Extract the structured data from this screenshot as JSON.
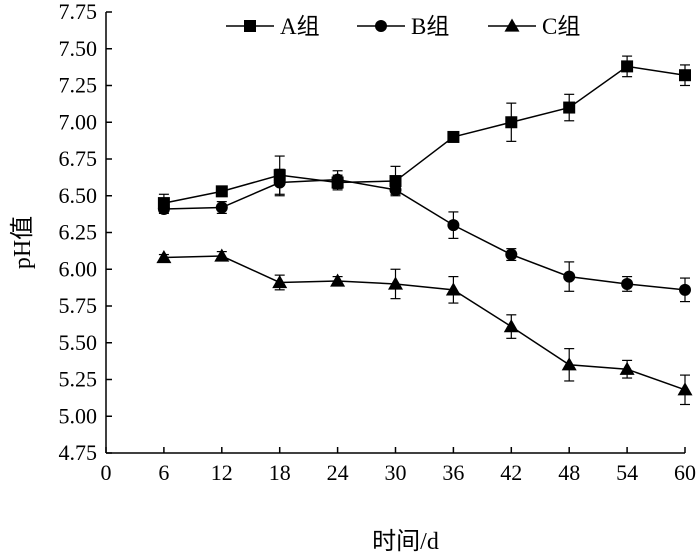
{
  "chart_data": {
    "type": "line",
    "title": "",
    "xlabel": "时间/d",
    "ylabel": "pH值",
    "xlim": [
      0,
      60
    ],
    "ylim": [
      4.75,
      7.75
    ],
    "xticks": [
      "0",
      "6",
      "12",
      "18",
      "24",
      "30",
      "36",
      "42",
      "48",
      "54",
      "60"
    ],
    "yticks": [
      "4.75",
      "5.00",
      "5.25",
      "5.50",
      "5.75",
      "6.00",
      "6.25",
      "6.50",
      "6.75",
      "7.00",
      "7.25",
      "7.50",
      "7.75"
    ],
    "grid": false,
    "legend_position": "top",
    "x": [
      6,
      12,
      18,
      24,
      30,
      36,
      42,
      48,
      54,
      60
    ],
    "series": [
      {
        "name": "A组",
        "marker": "square",
        "values": [
          6.45,
          6.53,
          6.64,
          6.59,
          6.6,
          6.9,
          7.0,
          7.1,
          7.38,
          7.32
        ],
        "errors": [
          0.06,
          0.03,
          0.13,
          0.05,
          0.1,
          0.02,
          0.13,
          0.09,
          0.07,
          0.07
        ]
      },
      {
        "name": "B组",
        "marker": "circle",
        "values": [
          6.41,
          6.42,
          6.59,
          6.61,
          6.54,
          6.3,
          6.1,
          5.95,
          5.9,
          5.86
        ],
        "errors": [
          0.03,
          0.04,
          0.09,
          0.06,
          0.03,
          0.09,
          0.04,
          0.1,
          0.05,
          0.08
        ]
      },
      {
        "name": "C组",
        "marker": "triangle",
        "values": [
          6.08,
          6.09,
          5.91,
          5.92,
          5.9,
          5.86,
          5.61,
          5.35,
          5.32,
          5.18
        ],
        "errors": [
          0.02,
          0.03,
          0.05,
          0.03,
          0.1,
          0.09,
          0.08,
          0.11,
          0.06,
          0.1
        ]
      }
    ]
  }
}
